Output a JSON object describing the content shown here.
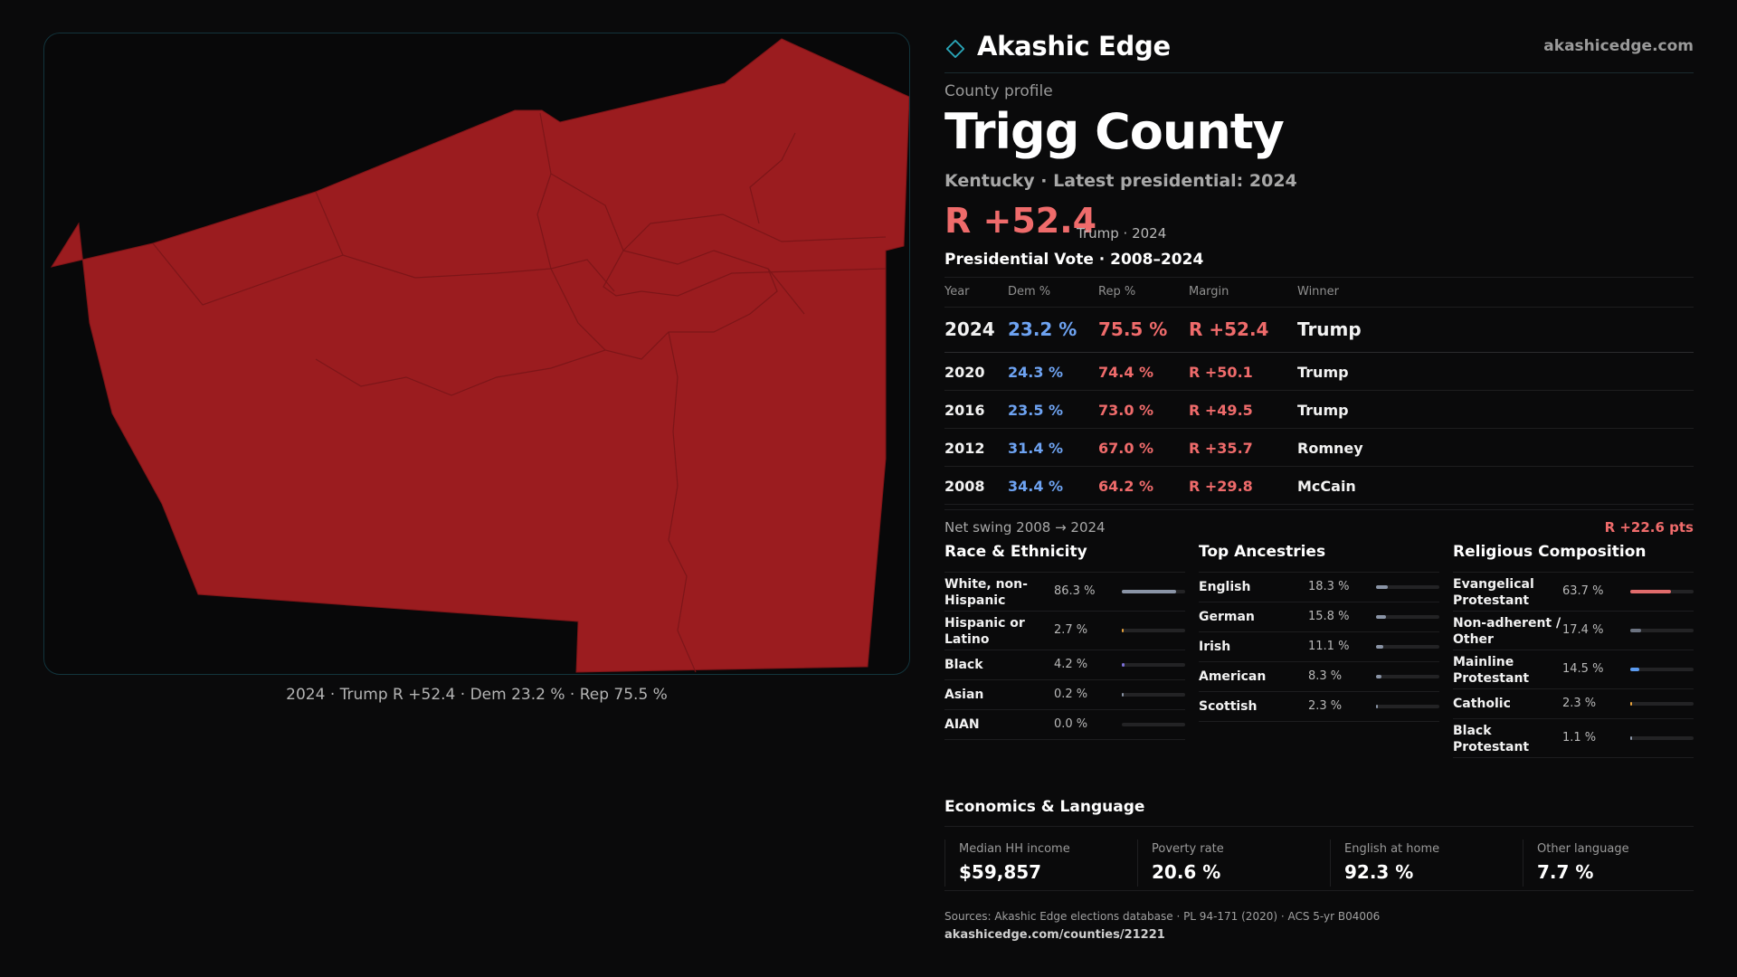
{
  "map": {
    "region_name": "Trigg County",
    "fill_color": "#9b1c1f",
    "border_color": "#12343c",
    "caption": "2024 · Trump R +52.4 · Dem 23.2 % · Rep 75.5 %"
  },
  "header": {
    "brand": "Akashic Edge",
    "url": "akashicedge.com",
    "kicker": "County profile",
    "title": "Trigg County",
    "subtitle": "Kentucky · Latest presidential: 2024",
    "margin": "R +52.4",
    "margin_note": "Trump · 2024"
  },
  "vote_section": {
    "title": "Presidential Vote · 2008–2024",
    "columns": [
      "Year",
      "Dem %",
      "Rep %",
      "Margin",
      "Winner"
    ],
    "rows": [
      {
        "year": "2024",
        "dem": "23.2 %",
        "rep": "75.5 %",
        "margin": "R +52.4",
        "winner": "Trump"
      },
      {
        "year": "2020",
        "dem": "24.3 %",
        "rep": "74.4 %",
        "margin": "R +50.1",
        "winner": "Trump"
      },
      {
        "year": "2016",
        "dem": "23.5 %",
        "rep": "73.0 %",
        "margin": "R +49.5",
        "winner": "Trump"
      },
      {
        "year": "2012",
        "dem": "31.4 %",
        "rep": "67.0 %",
        "margin": "R +35.7",
        "winner": "Romney"
      },
      {
        "year": "2008",
        "dem": "34.4 %",
        "rep": "64.2 %",
        "margin": "R +29.8",
        "winner": "McCain"
      }
    ],
    "swing_label": "Net swing 2008 → 2024",
    "swing_value": "R +22.6 pts"
  },
  "race": {
    "title": "Race & Ethnicity",
    "items": [
      {
        "name": "White, non-Hispanic",
        "value": "86.3 %",
        "pct": 86.3,
        "color": "#8a94a6"
      },
      {
        "name": "Hispanic or Latino",
        "value": "2.7 %",
        "pct": 2.7,
        "color": "#e6a23c"
      },
      {
        "name": "Black",
        "value": "4.2 %",
        "pct": 4.2,
        "color": "#7b6fd6"
      },
      {
        "name": "Asian",
        "value": "0.2 %",
        "pct": 0.2,
        "color": "#8a94a6"
      },
      {
        "name": "AIAN",
        "value": "0.0 %",
        "pct": 0.0,
        "color": "#8a94a6"
      }
    ]
  },
  "ancestry": {
    "title": "Top Ancestries",
    "items": [
      {
        "name": "English",
        "value": "18.3 %",
        "pct": 18.3,
        "color": "#8a94a6"
      },
      {
        "name": "German",
        "value": "15.8 %",
        "pct": 15.8,
        "color": "#8a94a6"
      },
      {
        "name": "Irish",
        "value": "11.1 %",
        "pct": 11.1,
        "color": "#8a94a6"
      },
      {
        "name": "American",
        "value": "8.3 %",
        "pct": 8.3,
        "color": "#8a94a6"
      },
      {
        "name": "Scottish",
        "value": "2.3 %",
        "pct": 2.3,
        "color": "#8a94a6"
      }
    ]
  },
  "religion": {
    "title": "Religious Composition",
    "items": [
      {
        "name": "Evangelical Protestant",
        "value": "63.7 %",
        "pct": 63.7,
        "color": "#e06b6b"
      },
      {
        "name": "Non-adherent / Other",
        "value": "17.4 %",
        "pct": 17.4,
        "color": "#6b7280"
      },
      {
        "name": "Mainline Protestant",
        "value": "14.5 %",
        "pct": 14.5,
        "color": "#5b9bf0"
      },
      {
        "name": "Catholic",
        "value": "2.3 %",
        "pct": 2.3,
        "color": "#e6a23c"
      },
      {
        "name": "Black Protestant",
        "value": "1.1 %",
        "pct": 1.1,
        "color": "#8a94a6"
      }
    ]
  },
  "economics": {
    "title": "Economics & Language",
    "items": [
      {
        "label": "Median HH income",
        "value": "$59,857"
      },
      {
        "label": "Poverty rate",
        "value": "20.6 %"
      },
      {
        "label": "English at home",
        "value": "92.3 %"
      },
      {
        "label": "Other language",
        "value": "7.7 %"
      }
    ]
  },
  "sources": "Sources: Akashic Edge elections database · PL 94-171 (2020) · ACS 5-yr B04006",
  "source_url": "akashicedge.com/counties/21221"
}
